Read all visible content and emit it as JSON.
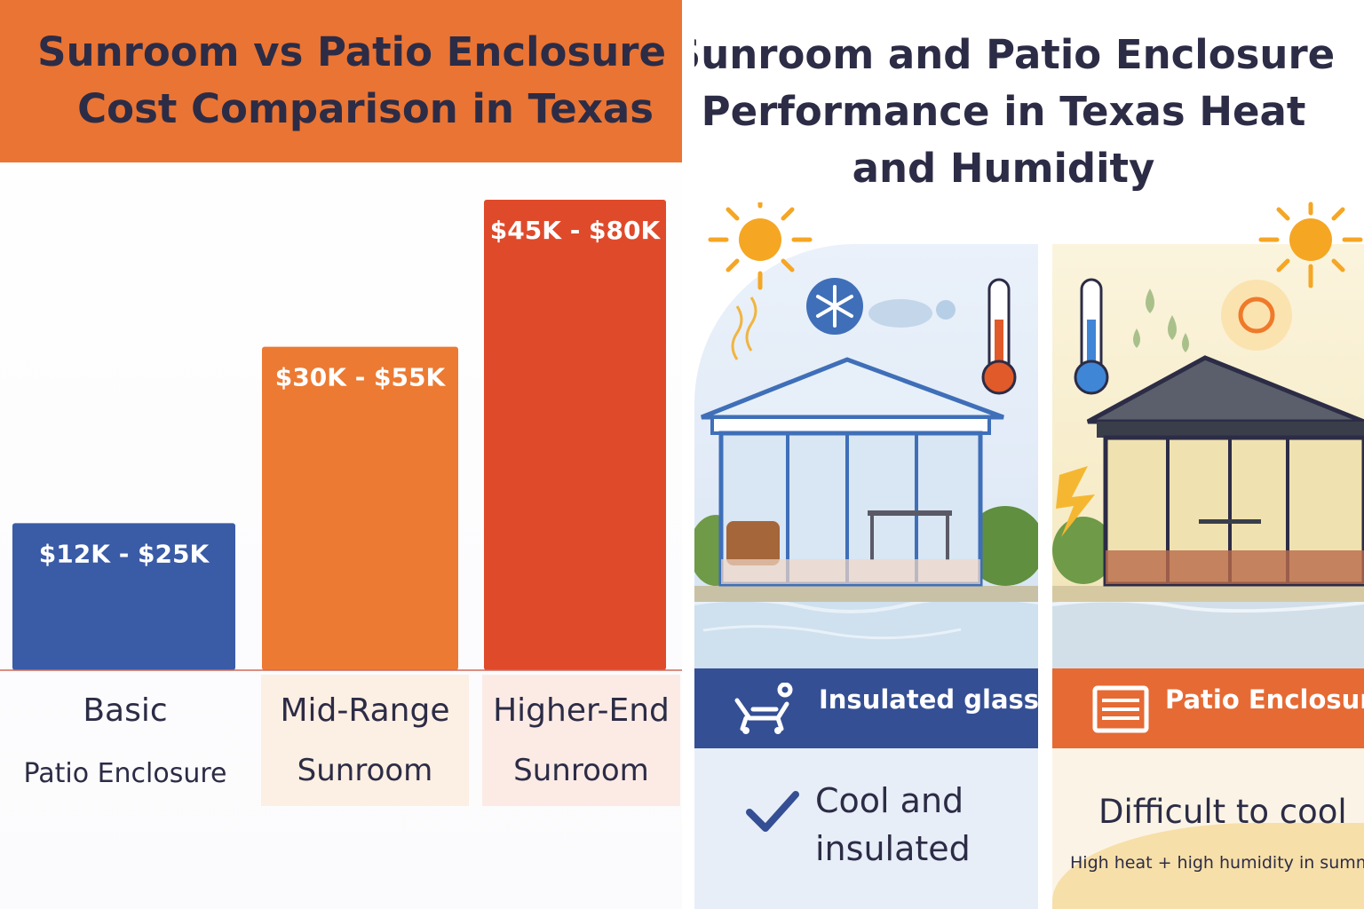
{
  "chart_data": {
    "type": "bar",
    "title": "Sunroom vs Patio Enclosure Cost Comparison in Texas",
    "title_lines": [
      "Sunroom vs Patio Enclosure",
      "Cost Comparison in Texas"
    ],
    "categories": [
      {
        "main": "Basic",
        "sub": "Patio Enclosure"
      },
      {
        "main": "Mid-Range",
        "sub": "Sunroom"
      },
      {
        "main": "Higher-End",
        "sub": "Sunroom"
      }
    ],
    "series": [
      {
        "value_labels": [
          "$12K - $25K",
          "$30K - $55K",
          "$45K - $80K"
        ],
        "low": [
          12,
          30,
          45
        ],
        "high": [
          25,
          55,
          80
        ],
        "unit": "$K"
      }
    ],
    "ylim": [
      0,
      80
    ],
    "grid": false,
    "legend": "none",
    "colors": [
      "#3a5ba6",
      "#ec7a33",
      "#df4a2b"
    ]
  },
  "performance": {
    "title_lines": [
      "Sunroom and Patio Enclosure",
      "Performance in Texas Heat",
      "and Humidity"
    ],
    "left": {
      "band_label": "Insulated glass",
      "band_icon": "lounge-chair-icon",
      "result_lines": [
        "Cool and",
        "insulated"
      ],
      "result_icon": "check-icon",
      "color": "#354f94"
    },
    "right": {
      "band_label": "Patio Enclosure",
      "band_icon": "screen-panel-icon",
      "result": "Difficult to cool",
      "note": "High heat + high humidity in summer",
      "color": "#e66a34"
    }
  }
}
